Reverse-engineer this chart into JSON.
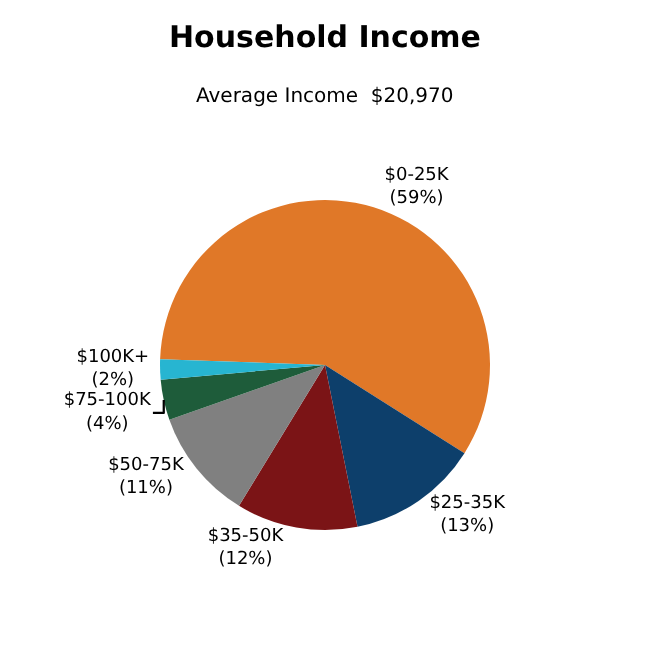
{
  "chart_data": {
    "type": "pie",
    "title": "Household Income",
    "subtitle": "Average Income  $20,970",
    "categories": [
      "$0-25K",
      "$25-35K",
      "$35-50K",
      "$50-75K",
      "$75-100K",
      "$100K+"
    ],
    "values": [
      59,
      13,
      12,
      11,
      4,
      2
    ],
    "value_labels": [
      "(59%)",
      "(13%)",
      "(12%)",
      "(11%)",
      "(4%)",
      "(2%)"
    ],
    "colors": [
      "#e07828",
      "#0d3f6b",
      "#7b1416",
      "#808080",
      "#1e5c3a",
      "#27b5d1"
    ],
    "legend": false
  }
}
